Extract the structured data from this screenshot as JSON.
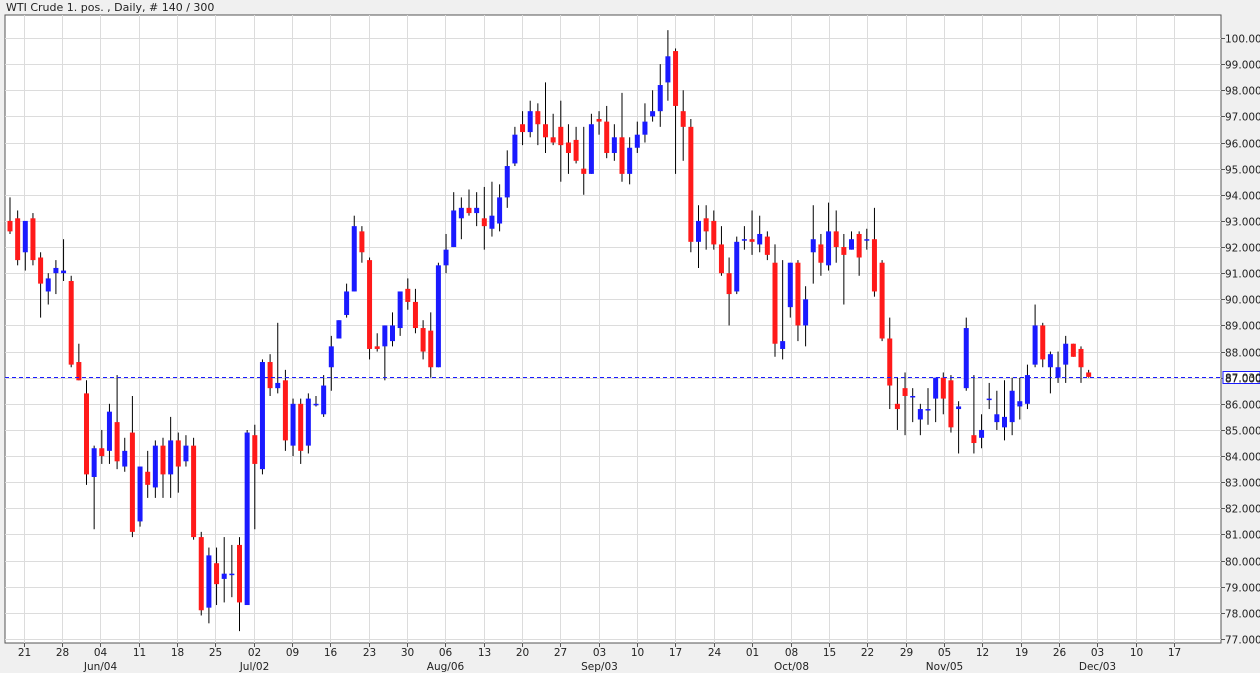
{
  "window": {
    "title": "WTI Crude 1. pos. , Daily, # 140 / 300"
  },
  "chart_data": {
    "type": "candlestick",
    "symbol": "WTI Crude 1. pos.",
    "timeframe": "Daily",
    "bars_info": "# 140 / 300",
    "ylim": [
      77,
      100.4
    ],
    "grid": true,
    "y_ticks": [
      "100.0000",
      "99.0000",
      "98.0000",
      "97.0000",
      "96.0000",
      "95.0000",
      "94.0000",
      "93.0000",
      "92.0000",
      "91.0000",
      "90.0000",
      "89.0000",
      "88.0000",
      "87.0000",
      "86.0000",
      "85.0000",
      "84.0000",
      "83.0000",
      "82.0000",
      "81.0000",
      "80.0000",
      "79.0000",
      "78.0000",
      "77.0000"
    ],
    "x_ticks": [
      "21",
      "28",
      "04",
      "11",
      "18",
      "25",
      "02",
      "09",
      "16",
      "23",
      "30",
      "06",
      "13",
      "20",
      "27",
      "03",
      "10",
      "17",
      "24",
      "01",
      "08",
      "15",
      "22",
      "29",
      "05",
      "12",
      "19",
      "26",
      "03",
      "10",
      "17"
    ],
    "month_labels": [
      {
        "label": "Jun/04",
        "tick": 2
      },
      {
        "label": "Jul/02",
        "tick": 6
      },
      {
        "label": "Aug/06",
        "tick": 11
      },
      {
        "label": "Sep/03",
        "tick": 15
      },
      {
        "label": "Oct/08",
        "tick": 20
      },
      {
        "label": "Nov/05",
        "tick": 24
      },
      {
        "label": "Dec/03",
        "tick": 28
      }
    ],
    "current_price": 87.03,
    "current_price_label": "87.030",
    "up_color": "#1a1aff",
    "down_color": "#ff1a1a",
    "candles": [
      {
        "o": 93.0,
        "h": 93.9,
        "l": 92.5,
        "c": 92.6
      },
      {
        "o": 93.1,
        "h": 93.4,
        "l": 91.3,
        "c": 91.5
      },
      {
        "o": 91.8,
        "h": 92.9,
        "l": 91.1,
        "c": 93.0
      },
      {
        "o": 93.1,
        "h": 93.3,
        "l": 91.3,
        "c": 91.5
      },
      {
        "o": 91.6,
        "h": 91.8,
        "l": 89.3,
        "c": 90.6
      },
      {
        "o": 90.3,
        "h": 91.0,
        "l": 89.8,
        "c": 90.8
      },
      {
        "o": 91.0,
        "h": 91.5,
        "l": 90.2,
        "c": 91.2
      },
      {
        "o": 91.0,
        "h": 92.3,
        "l": 90.7,
        "c": 91.1
      },
      {
        "o": 90.7,
        "h": 90.9,
        "l": 87.4,
        "c": 87.5
      },
      {
        "o": 87.6,
        "h": 88.3,
        "l": 86.9,
        "c": 86.9
      },
      {
        "o": 86.4,
        "h": 86.9,
        "l": 82.9,
        "c": 83.3
      },
      {
        "o": 83.2,
        "h": 84.4,
        "l": 81.2,
        "c": 84.3
      },
      {
        "o": 84.3,
        "h": 85.0,
        "l": 83.7,
        "c": 84.0
      },
      {
        "o": 84.2,
        "h": 86.0,
        "l": 83.7,
        "c": 85.7
      },
      {
        "o": 85.3,
        "h": 87.1,
        "l": 83.5,
        "c": 83.8
      },
      {
        "o": 83.6,
        "h": 84.7,
        "l": 83.4,
        "c": 84.2
      },
      {
        "o": 84.9,
        "h": 86.3,
        "l": 80.9,
        "c": 81.1
      },
      {
        "o": 81.5,
        "h": 83.6,
        "l": 81.3,
        "c": 83.6
      },
      {
        "o": 83.4,
        "h": 84.2,
        "l": 82.4,
        "c": 82.9
      },
      {
        "o": 82.8,
        "h": 84.6,
        "l": 82.4,
        "c": 84.4
      },
      {
        "o": 84.4,
        "h": 84.7,
        "l": 82.4,
        "c": 83.3
      },
      {
        "o": 83.3,
        "h": 85.5,
        "l": 82.4,
        "c": 84.6
      },
      {
        "o": 84.6,
        "h": 84.9,
        "l": 82.6,
        "c": 83.6
      },
      {
        "o": 83.8,
        "h": 84.8,
        "l": 83.6,
        "c": 84.4
      },
      {
        "o": 84.4,
        "h": 84.7,
        "l": 80.8,
        "c": 80.9
      },
      {
        "o": 80.9,
        "h": 81.1,
        "l": 77.9,
        "c": 78.1
      },
      {
        "o": 78.2,
        "h": 80.5,
        "l": 77.6,
        "c": 80.2
      },
      {
        "o": 79.9,
        "h": 80.5,
        "l": 78.3,
        "c": 79.1
      },
      {
        "o": 79.3,
        "h": 80.9,
        "l": 78.4,
        "c": 79.5
      },
      {
        "o": 79.5,
        "h": 80.6,
        "l": 78.6,
        "c": 79.5
      },
      {
        "o": 80.6,
        "h": 80.9,
        "l": 77.3,
        "c": 78.4
      },
      {
        "o": 78.3,
        "h": 85.0,
        "l": 78.3,
        "c": 84.9
      },
      {
        "o": 84.8,
        "h": 85.2,
        "l": 81.2,
        "c": 83.7
      },
      {
        "o": 83.5,
        "h": 87.7,
        "l": 83.3,
        "c": 87.6
      },
      {
        "o": 87.6,
        "h": 87.9,
        "l": 86.3,
        "c": 86.6
      },
      {
        "o": 86.6,
        "h": 89.1,
        "l": 86.4,
        "c": 86.8
      },
      {
        "o": 86.9,
        "h": 87.3,
        "l": 84.2,
        "c": 84.6
      },
      {
        "o": 84.4,
        "h": 86.2,
        "l": 84.0,
        "c": 86.0
      },
      {
        "o": 86.0,
        "h": 86.2,
        "l": 83.7,
        "c": 84.2
      },
      {
        "o": 84.4,
        "h": 86.4,
        "l": 84.1,
        "c": 86.2
      },
      {
        "o": 86.0,
        "h": 86.3,
        "l": 85.9,
        "c": 86.0
      },
      {
        "o": 85.6,
        "h": 87.1,
        "l": 85.5,
        "c": 86.7
      },
      {
        "o": 87.4,
        "h": 88.6,
        "l": 86.5,
        "c": 88.2
      },
      {
        "o": 88.5,
        "h": 89.2,
        "l": 88.5,
        "c": 89.2
      },
      {
        "o": 89.4,
        "h": 90.6,
        "l": 89.3,
        "c": 90.3
      },
      {
        "o": 90.3,
        "h": 93.2,
        "l": 90.3,
        "c": 92.8
      },
      {
        "o": 92.6,
        "h": 92.8,
        "l": 91.4,
        "c": 91.8
      },
      {
        "o": 91.5,
        "h": 91.6,
        "l": 87.7,
        "c": 88.1
      },
      {
        "o": 88.2,
        "h": 88.7,
        "l": 88.0,
        "c": 88.1
      },
      {
        "o": 88.2,
        "h": 89.0,
        "l": 86.9,
        "c": 89.0
      },
      {
        "o": 88.4,
        "h": 89.5,
        "l": 88.2,
        "c": 89.0
      },
      {
        "o": 88.9,
        "h": 90.2,
        "l": 88.6,
        "c": 90.3
      },
      {
        "o": 90.4,
        "h": 90.8,
        "l": 89.6,
        "c": 89.9
      },
      {
        "o": 89.9,
        "h": 90.4,
        "l": 88.7,
        "c": 88.9
      },
      {
        "o": 88.9,
        "h": 89.2,
        "l": 87.7,
        "c": 88.0
      },
      {
        "o": 88.8,
        "h": 89.5,
        "l": 87.0,
        "c": 87.4
      },
      {
        "o": 87.4,
        "h": 91.4,
        "l": 87.4,
        "c": 91.3
      },
      {
        "o": 91.3,
        "h": 92.5,
        "l": 91.0,
        "c": 91.9
      },
      {
        "o": 92.0,
        "h": 94.1,
        "l": 92.0,
        "c": 93.4
      },
      {
        "o": 93.1,
        "h": 93.9,
        "l": 92.3,
        "c": 93.5
      },
      {
        "o": 93.5,
        "h": 94.2,
        "l": 93.2,
        "c": 93.3
      },
      {
        "o": 93.3,
        "h": 94.1,
        "l": 92.8,
        "c": 93.5
      },
      {
        "o": 93.1,
        "h": 94.3,
        "l": 91.9,
        "c": 92.8
      },
      {
        "o": 92.7,
        "h": 94.5,
        "l": 92.4,
        "c": 93.2
      },
      {
        "o": 92.9,
        "h": 94.4,
        "l": 92.6,
        "c": 93.9
      },
      {
        "o": 93.9,
        "h": 95.7,
        "l": 93.5,
        "c": 95.1
      },
      {
        "o": 95.2,
        "h": 96.6,
        "l": 95.1,
        "c": 96.3
      },
      {
        "o": 96.7,
        "h": 97.2,
        "l": 95.9,
        "c": 96.4
      },
      {
        "o": 96.4,
        "h": 97.6,
        "l": 96.2,
        "c": 97.2
      },
      {
        "o": 97.2,
        "h": 97.5,
        "l": 95.9,
        "c": 96.7
      },
      {
        "o": 96.7,
        "h": 98.3,
        "l": 95.6,
        "c": 96.2
      },
      {
        "o": 96.2,
        "h": 97.1,
        "l": 95.9,
        "c": 96.0
      },
      {
        "o": 96.6,
        "h": 97.6,
        "l": 94.5,
        "c": 95.9
      },
      {
        "o": 96.0,
        "h": 96.7,
        "l": 94.8,
        "c": 95.6
      },
      {
        "o": 96.1,
        "h": 96.6,
        "l": 95.2,
        "c": 95.3
      },
      {
        "o": 95.0,
        "h": 96.6,
        "l": 94.0,
        "c": 94.8
      },
      {
        "o": 94.8,
        "h": 97.1,
        "l": 94.8,
        "c": 96.7
      },
      {
        "o": 96.9,
        "h": 97.2,
        "l": 96.3,
        "c": 96.8
      },
      {
        "o": 96.8,
        "h": 97.4,
        "l": 95.4,
        "c": 95.6
      },
      {
        "o": 95.6,
        "h": 96.7,
        "l": 95.3,
        "c": 96.2
      },
      {
        "o": 96.2,
        "h": 97.9,
        "l": 94.5,
        "c": 94.8
      },
      {
        "o": 94.8,
        "h": 96.2,
        "l": 94.4,
        "c": 95.8
      },
      {
        "o": 95.8,
        "h": 96.8,
        "l": 95.6,
        "c": 96.3
      },
      {
        "o": 96.3,
        "h": 97.5,
        "l": 96.0,
        "c": 96.8
      },
      {
        "o": 97.0,
        "h": 98.0,
        "l": 96.8,
        "c": 97.2
      },
      {
        "o": 97.2,
        "h": 99.0,
        "l": 96.6,
        "c": 98.2
      },
      {
        "o": 98.3,
        "h": 100.3,
        "l": 97.6,
        "c": 99.3
      },
      {
        "o": 99.5,
        "h": 99.6,
        "l": 94.8,
        "c": 97.4
      },
      {
        "o": 97.2,
        "h": 98.0,
        "l": 95.3,
        "c": 96.6
      },
      {
        "o": 96.6,
        "h": 96.9,
        "l": 91.8,
        "c": 92.2
      },
      {
        "o": 92.2,
        "h": 93.6,
        "l": 91.2,
        "c": 93.0
      },
      {
        "o": 93.1,
        "h": 93.6,
        "l": 91.9,
        "c": 92.6
      },
      {
        "o": 93.0,
        "h": 93.4,
        "l": 91.9,
        "c": 92.1
      },
      {
        "o": 92.1,
        "h": 92.8,
        "l": 90.9,
        "c": 91.0
      },
      {
        "o": 91.0,
        "h": 91.6,
        "l": 89.0,
        "c": 90.2
      },
      {
        "o": 90.3,
        "h": 92.4,
        "l": 90.2,
        "c": 92.2
      },
      {
        "o": 92.3,
        "h": 92.8,
        "l": 91.9,
        "c": 92.3
      },
      {
        "o": 92.3,
        "h": 93.4,
        "l": 91.7,
        "c": 92.2
      },
      {
        "o": 92.1,
        "h": 93.2,
        "l": 91.8,
        "c": 92.5
      },
      {
        "o": 92.4,
        "h": 92.6,
        "l": 91.5,
        "c": 91.7
      },
      {
        "o": 91.4,
        "h": 92.1,
        "l": 87.8,
        "c": 88.3
      },
      {
        "o": 88.1,
        "h": 91.5,
        "l": 87.7,
        "c": 88.4
      },
      {
        "o": 89.7,
        "h": 91.4,
        "l": 89.3,
        "c": 91.4
      },
      {
        "o": 91.4,
        "h": 91.5,
        "l": 88.4,
        "c": 89.0
      },
      {
        "o": 89.0,
        "h": 90.5,
        "l": 88.2,
        "c": 90.0
      },
      {
        "o": 91.8,
        "h": 93.6,
        "l": 90.6,
        "c": 92.3
      },
      {
        "o": 92.1,
        "h": 92.5,
        "l": 90.9,
        "c": 91.4
      },
      {
        "o": 91.3,
        "h": 93.7,
        "l": 91.1,
        "c": 92.6
      },
      {
        "o": 92.6,
        "h": 93.4,
        "l": 91.4,
        "c": 92.0
      },
      {
        "o": 92.0,
        "h": 92.5,
        "l": 89.8,
        "c": 91.7
      },
      {
        "o": 91.9,
        "h": 92.6,
        "l": 91.9,
        "c": 92.3
      },
      {
        "o": 92.5,
        "h": 92.6,
        "l": 90.9,
        "c": 91.6
      },
      {
        "o": 92.3,
        "h": 92.7,
        "l": 91.9,
        "c": 92.3
      },
      {
        "o": 92.3,
        "h": 93.5,
        "l": 90.1,
        "c": 90.3
      },
      {
        "o": 91.4,
        "h": 91.5,
        "l": 88.4,
        "c": 88.5
      },
      {
        "o": 88.5,
        "h": 89.3,
        "l": 85.8,
        "c": 86.7
      },
      {
        "o": 86.0,
        "h": 87.0,
        "l": 85.0,
        "c": 85.8
      },
      {
        "o": 86.6,
        "h": 87.2,
        "l": 84.8,
        "c": 86.3
      },
      {
        "o": 86.3,
        "h": 86.6,
        "l": 85.3,
        "c": 86.3
      },
      {
        "o": 85.4,
        "h": 86.0,
        "l": 84.8,
        "c": 85.8
      },
      {
        "o": 85.8,
        "h": 86.6,
        "l": 85.2,
        "c": 85.8
      },
      {
        "o": 86.2,
        "h": 87.0,
        "l": 85.3,
        "c": 87.0
      },
      {
        "o": 87.0,
        "h": 87.2,
        "l": 85.6,
        "c": 86.2
      },
      {
        "o": 86.9,
        "h": 87.1,
        "l": 84.9,
        "c": 85.1
      },
      {
        "o": 85.8,
        "h": 86.1,
        "l": 84.1,
        "c": 85.9
      },
      {
        "o": 86.6,
        "h": 89.3,
        "l": 86.5,
        "c": 88.9
      },
      {
        "o": 84.8,
        "h": 87.1,
        "l": 84.1,
        "c": 84.5
      },
      {
        "o": 84.7,
        "h": 85.6,
        "l": 84.3,
        "c": 85.0
      },
      {
        "o": 86.2,
        "h": 86.8,
        "l": 85.8,
        "c": 86.2
      },
      {
        "o": 85.3,
        "h": 86.5,
        "l": 85.0,
        "c": 85.6
      },
      {
        "o": 85.1,
        "h": 86.9,
        "l": 84.6,
        "c": 85.5
      },
      {
        "o": 85.3,
        "h": 87.0,
        "l": 84.8,
        "c": 86.5
      },
      {
        "o": 85.9,
        "h": 87.0,
        "l": 85.4,
        "c": 86.1
      },
      {
        "o": 86.0,
        "h": 87.5,
        "l": 85.8,
        "c": 87.1
      },
      {
        "o": 87.5,
        "h": 89.8,
        "l": 87.4,
        "c": 89.0
      },
      {
        "o": 89.0,
        "h": 89.1,
        "l": 87.4,
        "c": 87.7
      },
      {
        "o": 87.4,
        "h": 88.0,
        "l": 86.4,
        "c": 87.9
      },
      {
        "o": 87.0,
        "h": 88.0,
        "l": 86.8,
        "c": 87.4
      },
      {
        "o": 87.5,
        "h": 88.6,
        "l": 86.8,
        "c": 88.3
      },
      {
        "o": 88.3,
        "h": 88.3,
        "l": 87.8,
        "c": 87.8
      },
      {
        "o": 88.1,
        "h": 88.2,
        "l": 86.8,
        "c": 87.4
      },
      {
        "o": 87.2,
        "h": 87.3,
        "l": 87.0,
        "c": 87.03
      }
    ]
  }
}
